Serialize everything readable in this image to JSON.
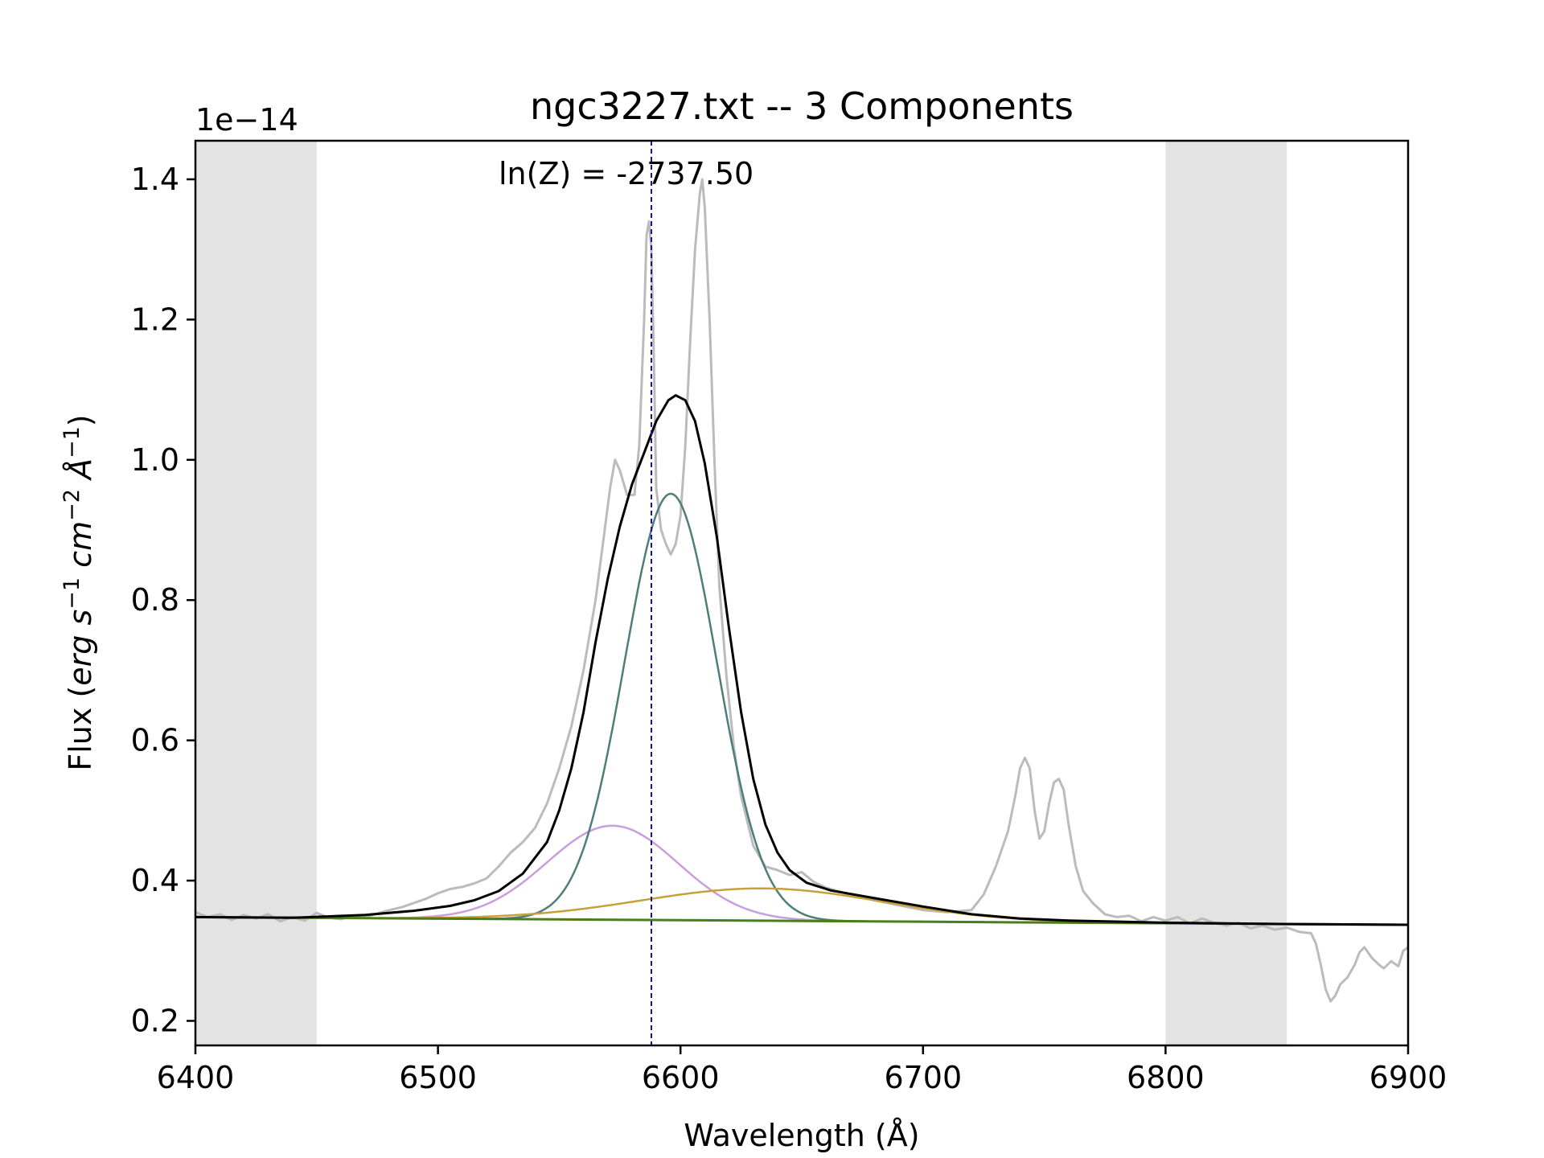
{
  "chart_data": {
    "type": "line",
    "title": "ngc3227.txt -- 3 Components",
    "xlabel": "Wavelength (Å)",
    "ylabel": {
      "prefix": "Flux (",
      "parts": [
        {
          "t": "erg s",
          "italic": true
        },
        {
          "t": "−1",
          "sup": true
        },
        {
          "t": " cm",
          "italic": true
        },
        {
          "t": "−2",
          "sup": true
        },
        {
          "t": " Å",
          "italic": true
        },
        {
          "t": "−1",
          "sup": true
        }
      ],
      "suffix": ")"
    },
    "y_offset_label": "1e−14",
    "annotation": "ln(Z) = -2737.50",
    "xlim": [
      6400,
      6900
    ],
    "ylim": [
      0.165,
      1.455
    ],
    "x_ticks": [
      6400,
      6500,
      6600,
      6700,
      6800,
      6900
    ],
    "x_tick_labels": [
      "6400",
      "6500",
      "6600",
      "6700",
      "6800",
      "6900"
    ],
    "y_ticks": [
      0.2,
      0.4,
      0.6,
      0.8,
      1.0,
      1.2,
      1.4
    ],
    "y_tick_labels": [
      "0.2",
      "0.4",
      "0.6",
      "0.8",
      "1.0",
      "1.2",
      "1.4"
    ],
    "grid": false,
    "shaded_regions": [
      {
        "x0": 6400,
        "x1": 6450,
        "color": "#e3e3e3"
      },
      {
        "x0": 6800,
        "x1": 6850,
        "color": "#e3e3e3"
      }
    ],
    "vertical_line": {
      "x": 6588,
      "color": "#1515a0",
      "style": "dashed"
    },
    "continuum": {
      "y0": 0.348,
      "y1": 0.337,
      "color": "#4a7d1e"
    },
    "components": [
      {
        "center": 6572,
        "sigma": 27,
        "amp": 0.134,
        "color": "#c89ee0"
      },
      {
        "center": 6596,
        "sigma": 19,
        "amp": 0.608,
        "color": "#4e7d7a"
      },
      {
        "center": 6634,
        "sigma": 50,
        "amp": 0.046,
        "color": "#c8a038"
      }
    ],
    "total_model": {
      "color": "#000000",
      "points": [
        [
          6400,
          0.348
        ],
        [
          6440,
          0.347
        ],
        [
          6470,
          0.351
        ],
        [
          6490,
          0.357
        ],
        [
          6505,
          0.364
        ],
        [
          6515,
          0.372
        ],
        [
          6525,
          0.385
        ],
        [
          6535,
          0.41
        ],
        [
          6545,
          0.455
        ],
        [
          6550,
          0.5
        ],
        [
          6555,
          0.56
        ],
        [
          6560,
          0.64
        ],
        [
          6565,
          0.74
        ],
        [
          6570,
          0.83
        ],
        [
          6575,
          0.905
        ],
        [
          6580,
          0.965
        ],
        [
          6585,
          1.01
        ],
        [
          6590,
          1.055
        ],
        [
          6595,
          1.085
        ],
        [
          6598,
          1.092
        ],
        [
          6602,
          1.085
        ],
        [
          6606,
          1.055
        ],
        [
          6610,
          0.995
        ],
        [
          6615,
          0.89
        ],
        [
          6620,
          0.76
        ],
        [
          6625,
          0.64
        ],
        [
          6630,
          0.545
        ],
        [
          6635,
          0.48
        ],
        [
          6640,
          0.44
        ],
        [
          6645,
          0.415
        ],
        [
          6652,
          0.397
        ],
        [
          6662,
          0.386
        ],
        [
          6680,
          0.375
        ],
        [
          6700,
          0.363
        ],
        [
          6720,
          0.352
        ],
        [
          6740,
          0.346
        ],
        [
          6760,
          0.343
        ],
        [
          6800,
          0.34
        ],
        [
          6850,
          0.338
        ],
        [
          6900,
          0.337
        ]
      ]
    },
    "observed": {
      "color": "#bbbbbb",
      "points": [
        [
          6400,
          0.355
        ],
        [
          6405,
          0.348
        ],
        [
          6410,
          0.352
        ],
        [
          6415,
          0.344
        ],
        [
          6420,
          0.351
        ],
        [
          6425,
          0.346
        ],
        [
          6430,
          0.352
        ],
        [
          6435,
          0.342
        ],
        [
          6440,
          0.348
        ],
        [
          6445,
          0.343
        ],
        [
          6450,
          0.354
        ],
        [
          6455,
          0.347
        ],
        [
          6460,
          0.345
        ],
        [
          6465,
          0.35
        ],
        [
          6470,
          0.348
        ],
        [
          6475,
          0.353
        ],
        [
          6480,
          0.358
        ],
        [
          6485,
          0.362
        ],
        [
          6490,
          0.368
        ],
        [
          6495,
          0.374
        ],
        [
          6500,
          0.382
        ],
        [
          6505,
          0.388
        ],
        [
          6510,
          0.391
        ],
        [
          6515,
          0.396
        ],
        [
          6520,
          0.403
        ],
        [
          6525,
          0.42
        ],
        [
          6530,
          0.44
        ],
        [
          6535,
          0.455
        ],
        [
          6540,
          0.475
        ],
        [
          6545,
          0.51
        ],
        [
          6550,
          0.56
        ],
        [
          6555,
          0.62
        ],
        [
          6560,
          0.7
        ],
        [
          6565,
          0.8
        ],
        [
          6568,
          0.88
        ],
        [
          6571,
          0.96
        ],
        [
          6573,
          1.0
        ],
        [
          6575,
          0.985
        ],
        [
          6578,
          0.95
        ],
        [
          6581,
          0.95
        ],
        [
          6583,
          1.02
        ],
        [
          6585,
          1.2
        ],
        [
          6586,
          1.32
        ],
        [
          6587,
          1.34
        ],
        [
          6588,
          1.3
        ],
        [
          6589,
          1.15
        ],
        [
          6590,
          0.96
        ],
        [
          6592,
          0.9
        ],
        [
          6594,
          0.88
        ],
        [
          6596,
          0.865
        ],
        [
          6598,
          0.88
        ],
        [
          6600,
          0.92
        ],
        [
          6602,
          1.02
        ],
        [
          6604,
          1.17
        ],
        [
          6606,
          1.3
        ],
        [
          6608,
          1.38
        ],
        [
          6609,
          1.4
        ],
        [
          6610,
          1.36
        ],
        [
          6612,
          1.2
        ],
        [
          6614,
          1.0
        ],
        [
          6616,
          0.82
        ],
        [
          6619,
          0.69
        ],
        [
          6622,
          0.59
        ],
        [
          6625,
          0.52
        ],
        [
          6630,
          0.45
        ],
        [
          6635,
          0.42
        ],
        [
          6640,
          0.415
        ],
        [
          6645,
          0.408
        ],
        [
          6650,
          0.412
        ],
        [
          6655,
          0.398
        ],
        [
          6660,
          0.39
        ],
        [
          6670,
          0.38
        ],
        [
          6680,
          0.372
        ],
        [
          6690,
          0.365
        ],
        [
          6700,
          0.358
        ],
        [
          6710,
          0.355
        ],
        [
          6720,
          0.358
        ],
        [
          6725,
          0.38
        ],
        [
          6730,
          0.42
        ],
        [
          6735,
          0.47
        ],
        [
          6738,
          0.52
        ],
        [
          6740,
          0.56
        ],
        [
          6742,
          0.575
        ],
        [
          6744,
          0.56
        ],
        [
          6746,
          0.5
        ],
        [
          6748,
          0.46
        ],
        [
          6750,
          0.47
        ],
        [
          6752,
          0.51
        ],
        [
          6754,
          0.54
        ],
        [
          6756,
          0.545
        ],
        [
          6758,
          0.53
        ],
        [
          6760,
          0.48
        ],
        [
          6763,
          0.42
        ],
        [
          6766,
          0.385
        ],
        [
          6770,
          0.368
        ],
        [
          6775,
          0.352
        ],
        [
          6780,
          0.348
        ],
        [
          6785,
          0.35
        ],
        [
          6790,
          0.342
        ],
        [
          6795,
          0.348
        ],
        [
          6800,
          0.343
        ],
        [
          6805,
          0.348
        ],
        [
          6810,
          0.339
        ],
        [
          6815,
          0.346
        ],
        [
          6820,
          0.34
        ],
        [
          6825,
          0.336
        ],
        [
          6830,
          0.34
        ],
        [
          6835,
          0.332
        ],
        [
          6840,
          0.336
        ],
        [
          6845,
          0.33
        ],
        [
          6850,
          0.333
        ],
        [
          6855,
          0.327
        ],
        [
          6860,
          0.325
        ],
        [
          6862,
          0.31
        ],
        [
          6864,
          0.28
        ],
        [
          6866,
          0.245
        ],
        [
          6868,
          0.228
        ],
        [
          6870,
          0.236
        ],
        [
          6872,
          0.252
        ],
        [
          6875,
          0.262
        ],
        [
          6878,
          0.28
        ],
        [
          6880,
          0.298
        ],
        [
          6882,
          0.305
        ],
        [
          6885,
          0.29
        ],
        [
          6888,
          0.28
        ],
        [
          6890,
          0.275
        ],
        [
          6893,
          0.285
        ],
        [
          6896,
          0.278
        ],
        [
          6898,
          0.3
        ],
        [
          6900,
          0.305
        ]
      ]
    }
  }
}
